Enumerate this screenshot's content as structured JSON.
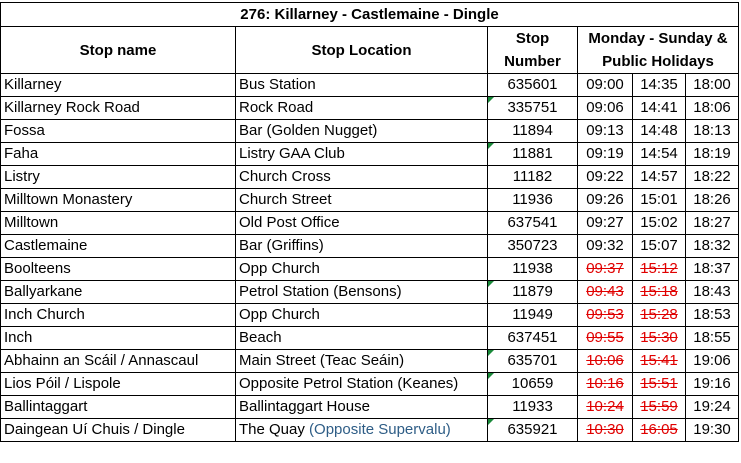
{
  "title": "276: Killarney - Castlemaine - Dingle",
  "headers": {
    "stop_name": "Stop name",
    "stop_location": "Stop Location",
    "stop_number": "Stop\nNumber",
    "days": "Monday - Sunday &\nPublic Holidays"
  },
  "rows": [
    {
      "name": "Killarney",
      "location": "Bus Station",
      "location_note": "",
      "number": "635601",
      "flag": false,
      "times": [
        {
          "t": "09:00",
          "cancelled": false
        },
        {
          "t": "14:35",
          "cancelled": false
        },
        {
          "t": "18:00",
          "cancelled": false
        }
      ]
    },
    {
      "name": "Killarney Rock Road",
      "location": "Rock Road",
      "location_note": "",
      "number": "335751",
      "flag": true,
      "times": [
        {
          "t": "09:06",
          "cancelled": false
        },
        {
          "t": "14:41",
          "cancelled": false
        },
        {
          "t": "18:06",
          "cancelled": false
        }
      ]
    },
    {
      "name": "Fossa",
      "location": "Bar (Golden Nugget)",
      "location_note": "",
      "number": "11894",
      "flag": false,
      "times": [
        {
          "t": "09:13",
          "cancelled": false
        },
        {
          "t": "14:48",
          "cancelled": false
        },
        {
          "t": "18:13",
          "cancelled": false
        }
      ]
    },
    {
      "name": "Faha",
      "location": "Listry GAA Club",
      "location_note": "",
      "number": "11881",
      "flag": true,
      "times": [
        {
          "t": "09:19",
          "cancelled": false
        },
        {
          "t": "14:54",
          "cancelled": false
        },
        {
          "t": "18:19",
          "cancelled": false
        }
      ]
    },
    {
      "name": "Listry",
      "location": "Church Cross",
      "location_note": "",
      "number": "11182",
      "flag": false,
      "times": [
        {
          "t": "09:22",
          "cancelled": false
        },
        {
          "t": "14:57",
          "cancelled": false
        },
        {
          "t": "18:22",
          "cancelled": false
        }
      ]
    },
    {
      "name": "Milltown Monastery",
      "location": "Church Street",
      "location_note": "",
      "number": "11936",
      "flag": false,
      "times": [
        {
          "t": "09:26",
          "cancelled": false
        },
        {
          "t": "15:01",
          "cancelled": false
        },
        {
          "t": "18:26",
          "cancelled": false
        }
      ]
    },
    {
      "name": "Milltown",
      "location": "Old Post Office",
      "location_note": "",
      "number": "637541",
      "flag": false,
      "times": [
        {
          "t": "09:27",
          "cancelled": false
        },
        {
          "t": "15:02",
          "cancelled": false
        },
        {
          "t": "18:27",
          "cancelled": false
        }
      ]
    },
    {
      "name": "Castlemaine",
      "location": "Bar (Griffins)",
      "location_note": "",
      "number": "350723",
      "flag": false,
      "times": [
        {
          "t": "09:32",
          "cancelled": false
        },
        {
          "t": "15:07",
          "cancelled": false
        },
        {
          "t": "18:32",
          "cancelled": false
        }
      ]
    },
    {
      "name": "Boolteens",
      "location": "Opp Church",
      "location_note": "",
      "number": "11938",
      "flag": false,
      "times": [
        {
          "t": "09:37",
          "cancelled": true
        },
        {
          "t": "15:12",
          "cancelled": true
        },
        {
          "t": "18:37",
          "cancelled": false
        }
      ]
    },
    {
      "name": "Ballyarkane",
      "location": "Petrol Station (Bensons)",
      "location_note": "",
      "number": "11879",
      "flag": true,
      "times": [
        {
          "t": "09:43",
          "cancelled": true
        },
        {
          "t": "15:18",
          "cancelled": true
        },
        {
          "t": "18:43",
          "cancelled": false
        }
      ]
    },
    {
      "name": "Inch Church",
      "location": "Opp Church",
      "location_note": "",
      "number": "11949",
      "flag": false,
      "times": [
        {
          "t": "09:53",
          "cancelled": true
        },
        {
          "t": "15:28",
          "cancelled": true
        },
        {
          "t": "18:53",
          "cancelled": false
        }
      ]
    },
    {
      "name": "Inch",
      "location": "Beach",
      "location_note": "",
      "number": "637451",
      "flag": false,
      "times": [
        {
          "t": "09:55",
          "cancelled": true
        },
        {
          "t": "15:30",
          "cancelled": true
        },
        {
          "t": "18:55",
          "cancelled": false
        }
      ]
    },
    {
      "name": "Abhainn an Scáil / Annascaul",
      "location": "Main Street (Teac Seáin)",
      "location_note": "",
      "number": "635701",
      "flag": true,
      "times": [
        {
          "t": "10:06",
          "cancelled": true
        },
        {
          "t": "15:41",
          "cancelled": true
        },
        {
          "t": "19:06",
          "cancelled": false
        }
      ]
    },
    {
      "name": "Lios Póil / Lispole",
      "location": "Opposite Petrol Station (Keanes)",
      "location_note": "",
      "number": "10659",
      "flag": true,
      "times": [
        {
          "t": "10:16",
          "cancelled": true
        },
        {
          "t": "15:51",
          "cancelled": true
        },
        {
          "t": "19:16",
          "cancelled": false
        }
      ]
    },
    {
      "name": "Ballintaggart",
      "location": "Ballintaggart House",
      "location_note": "",
      "number": "11933",
      "flag": false,
      "times": [
        {
          "t": "10:24",
          "cancelled": true
        },
        {
          "t": "15:59",
          "cancelled": true
        },
        {
          "t": "19:24",
          "cancelled": false
        }
      ]
    },
    {
      "name": "Daingean Uí Chuis / Dingle",
      "location": "The Quay",
      "location_note": "(Opposite Supervalu)",
      "number": "635921",
      "flag": true,
      "times": [
        {
          "t": "10:30",
          "cancelled": true
        },
        {
          "t": "16:05",
          "cancelled": true
        },
        {
          "t": "19:30",
          "cancelled": false
        }
      ]
    }
  ],
  "colors": {
    "cancelled": "#e00000",
    "note": "#2e5d86",
    "flag": "#1a8a3a"
  }
}
